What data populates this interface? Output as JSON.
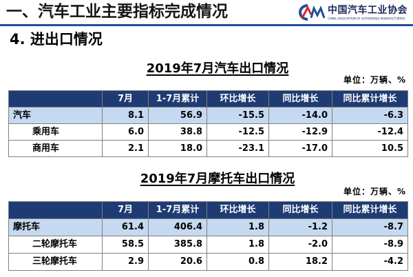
{
  "header": {
    "title": "一、汽车工业主要指标完成情况",
    "logo": {
      "icon": "caam-logo-icon",
      "name_cn": "中国汽车工业协会",
      "name_en": "CHINA ASSOCIATION OF AUTOMOBILE MANUFACTURERS"
    }
  },
  "section": {
    "title": "4. 进出口情况"
  },
  "tables": [
    {
      "title": "2019年7月汽车出口情况",
      "unit": "单位：万辆、%",
      "columns": [
        "",
        "7月",
        "1-7月累计",
        "环比增长",
        "同比增长",
        "同比累计增长"
      ],
      "rows": [
        {
          "label": "汽车",
          "values": [
            "8.1",
            "56.9",
            "-15.5",
            "-14.0",
            "-6.3"
          ]
        },
        {
          "label": "乘用车",
          "values": [
            "6.0",
            "38.8",
            "-12.5",
            "-12.9",
            "-12.4"
          ]
        },
        {
          "label": "商用车",
          "values": [
            "2.1",
            "18.0",
            "-23.1",
            "-17.0",
            "10.5"
          ]
        }
      ]
    },
    {
      "title": "2019年7月摩托车出口情况",
      "unit": "单位：万辆、%",
      "columns": [
        "",
        "7月",
        "1-7月累计",
        "环比增长",
        "同比增长",
        "同比累计增长"
      ],
      "rows": [
        {
          "label": "摩托车",
          "values": [
            "61.4",
            "406.4",
            "1.8",
            "-1.2",
            "-8.7"
          ]
        },
        {
          "label": "二轮摩托车",
          "values": [
            "58.5",
            "385.8",
            "1.8",
            "-2.0",
            "-8.9"
          ]
        },
        {
          "label": "三轮摩托车",
          "values": [
            "2.9",
            "20.6",
            "0.8",
            "18.2",
            "-4.2"
          ]
        }
      ]
    }
  ],
  "colors": {
    "accent": "#1F4E9A",
    "logo_red": "#D7262D",
    "table_header_bg": "#1F3B73",
    "highlight_row_bg": "#C5D9F1"
  }
}
